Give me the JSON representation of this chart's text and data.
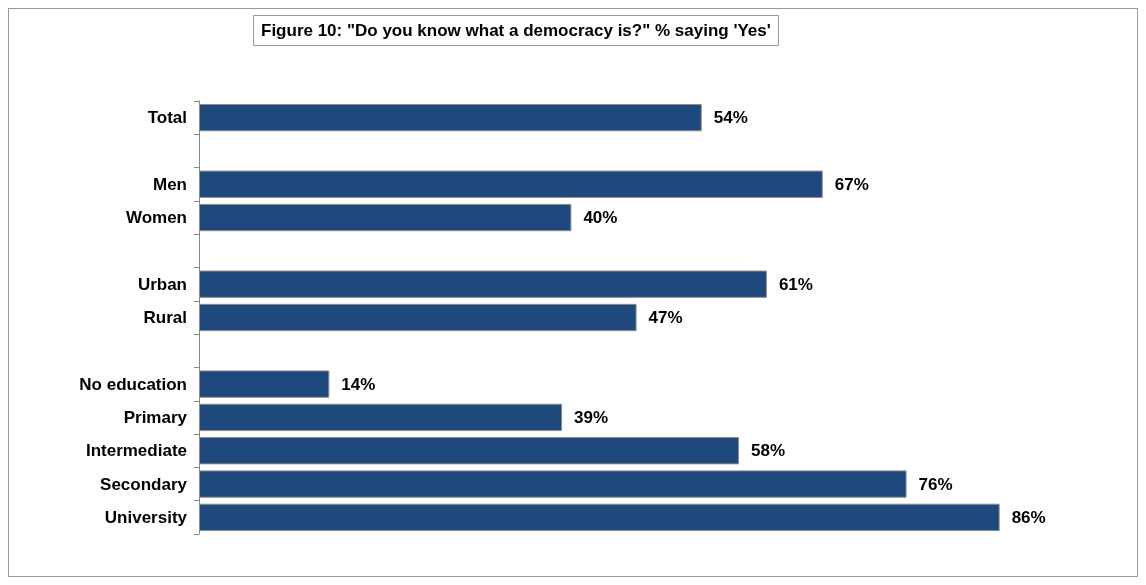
{
  "chart_data": {
    "type": "bar",
    "orientation": "horizontal",
    "title": "Figure 10: \"Do you know what a democracy is?\" % saying 'Yes'",
    "categories": [
      "Total",
      null,
      "Men",
      "Women",
      null,
      "Urban",
      "Rural",
      null,
      "No education",
      "Primary",
      "Intermediate",
      "Secondary",
      "University"
    ],
    "values": [
      54,
      null,
      67,
      40,
      null,
      61,
      47,
      null,
      14,
      39,
      58,
      76,
      86
    ],
    "value_labels": [
      "54%",
      null,
      "67%",
      "40%",
      null,
      "61%",
      "47%",
      null,
      "14%",
      "39%",
      "58%",
      "76%",
      "86%"
    ],
    "color": "#1f497d",
    "tick_labels": "y"
  }
}
